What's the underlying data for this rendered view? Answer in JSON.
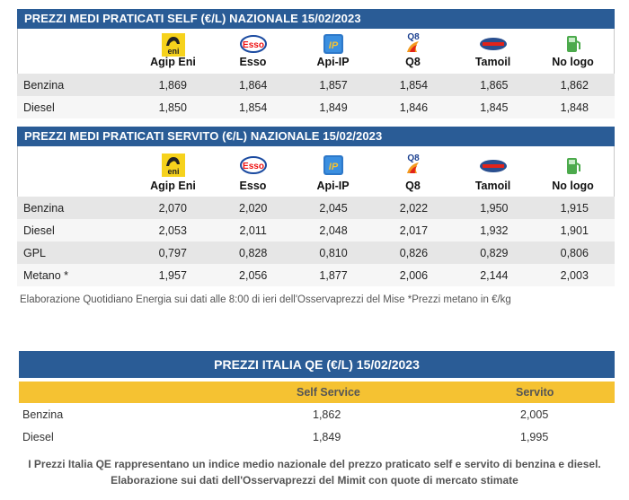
{
  "self": {
    "title": "PREZZI MEDI PRATICATI SELF (€/L) NAZIONALE 15/02/2023",
    "brands": [
      "Agip Eni",
      "Esso",
      "Api-IP",
      "Q8",
      "Tamoil",
      "No logo"
    ],
    "rows": [
      {
        "label": "Benzina",
        "values": [
          "1,869",
          "1,864",
          "1,857",
          "1,854",
          "1,865",
          "1,862"
        ]
      },
      {
        "label": "Diesel",
        "values": [
          "1,850",
          "1,854",
          "1,849",
          "1,846",
          "1,845",
          "1,848"
        ]
      }
    ]
  },
  "servito": {
    "title": "PREZZI MEDI PRATICATI SERVITO (€/L) NAZIONALE 15/02/2023",
    "brands": [
      "Agip Eni",
      "Esso",
      "Api-IP",
      "Q8",
      "Tamoil",
      "No logo"
    ],
    "rows": [
      {
        "label": "Benzina",
        "values": [
          "2,070",
          "2,020",
          "2,045",
          "2,022",
          "1,950",
          "1,915"
        ]
      },
      {
        "label": "Diesel",
        "values": [
          "2,053",
          "2,011",
          "2,048",
          "2,017",
          "1,932",
          "1,901"
        ]
      },
      {
        "label": "GPL",
        "values": [
          "0,797",
          "0,828",
          "0,810",
          "0,826",
          "0,829",
          "0,806"
        ]
      },
      {
        "label": "Metano *",
        "values": [
          "1,957",
          "2,056",
          "1,877",
          "2,006",
          "2,144",
          "2,003"
        ]
      }
    ]
  },
  "logo_texts": {
    "eni": "eni",
    "esso": "Esso",
    "ip": "IP",
    "q8": "Q8"
  },
  "note": "Elaborazione Quotidiano Energia sui dati alle 8:00 di ieri dell'Osservaprezzi del Mise *Prezzi metano in €/kg",
  "qe": {
    "title": "PREZZI ITALIA QE (€/L) 15/02/2023",
    "col_self": "Self Service",
    "col_servito": "Servito",
    "rows": [
      {
        "label": "Benzina",
        "self": "1,862",
        "servito": "2,005"
      },
      {
        "label": "Diesel",
        "self": "1,849",
        "servito": "1,995"
      }
    ],
    "footnote_1": "I Prezzi Italia QE rappresentano un indice medio nazionale del prezzo praticato self e servito di benzina e diesel.",
    "footnote_2": "Elaborazione sui dati dell'Osservaprezzi del Mimit con quote di mercato stimate"
  },
  "colors": {
    "header_blue": "#2a5c96",
    "qe_yellow": "#f5c232"
  }
}
